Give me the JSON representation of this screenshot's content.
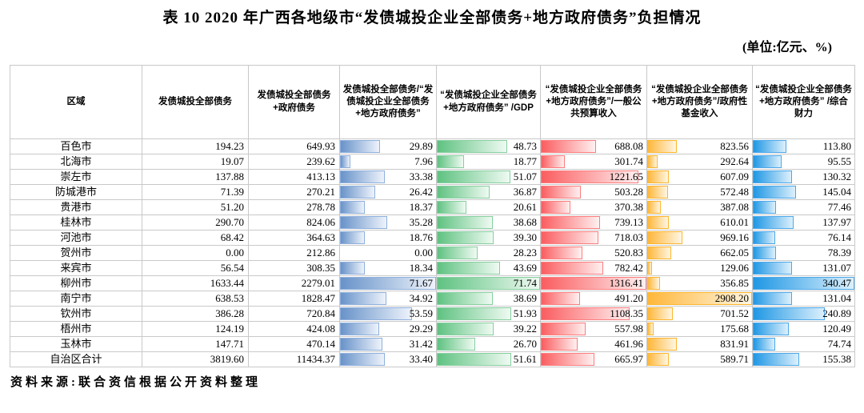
{
  "title": "表 10  2020 年广西各地级市“发债城投企业全部债务+地方政府债务”负担情况",
  "unit_note": "(单位:亿元、%)",
  "source_note": "资料来源:联合资信根据公开资料整理",
  "table": {
    "columns": [
      {
        "key": "region",
        "label": "区域"
      },
      {
        "key": "debt",
        "label": "发债城投全部债务"
      },
      {
        "key": "debt_gov",
        "label": "发债城投全部债务+政府债务"
      },
      {
        "key": "r_share",
        "label": "发债城投全部债务/“发债城投企业全部债务+地方政府债务”",
        "bar_color": "#6893c9",
        "bar_color_light": "#eef3fb",
        "bar_border": "#8fafdc"
      },
      {
        "key": "r_gdp",
        "label": "“发债城投企业全部债务+地方政府债务” /GDP",
        "bar_color": "#5fc281",
        "bar_color_light": "#effaf2",
        "bar_border": "#86cf9f"
      },
      {
        "key": "r_budget",
        "label": "“发债城投企业全部债务+地方政府债务”/一般公共预算收入",
        "bar_color": "#fa5d60",
        "bar_color_light": "#fff0f0",
        "bar_border": "#fb7d7f"
      },
      {
        "key": "r_fund",
        "label": "“发债城投企业全部债务+地方政府债务”/政府性基金收入",
        "bar_color": "#ffb73b",
        "bar_color_light": "#fff6e2",
        "bar_border": "#fcb52e"
      },
      {
        "key": "r_fiscal",
        "label": "“发债城投企业全部债务+地方政府债务” /综合财力",
        "bar_color": "#1f97e4",
        "bar_color_light": "#dcf0fc",
        "bar_border": "#4da7e8"
      }
    ],
    "rows": [
      {
        "region": "百色市",
        "debt": "194.23",
        "debt_gov": "649.93",
        "r_share": "29.89",
        "r_gdp": "48.73",
        "r_budget": "688.08",
        "r_fund": "823.56",
        "r_fiscal": "113.80"
      },
      {
        "region": "北海市",
        "debt": "19.07",
        "debt_gov": "239.62",
        "r_share": "7.96",
        "r_gdp": "18.77",
        "r_budget": "301.74",
        "r_fund": "292.64",
        "r_fiscal": "95.55"
      },
      {
        "region": "崇左市",
        "debt": "137.88",
        "debt_gov": "413.13",
        "r_share": "33.38",
        "r_gdp": "51.07",
        "r_budget": "1221.65",
        "r_fund": "607.09",
        "r_fiscal": "130.32"
      },
      {
        "region": "防城港市",
        "debt": "71.39",
        "debt_gov": "270.21",
        "r_share": "26.42",
        "r_gdp": "36.87",
        "r_budget": "503.28",
        "r_fund": "572.48",
        "r_fiscal": "145.04"
      },
      {
        "region": "贵港市",
        "debt": "51.20",
        "debt_gov": "278.78",
        "r_share": "18.37",
        "r_gdp": "20.61",
        "r_budget": "370.38",
        "r_fund": "387.08",
        "r_fiscal": "77.46"
      },
      {
        "region": "桂林市",
        "debt": "290.70",
        "debt_gov": "824.06",
        "r_share": "35.28",
        "r_gdp": "38.68",
        "r_budget": "739.13",
        "r_fund": "610.01",
        "r_fiscal": "137.97"
      },
      {
        "region": "河池市",
        "debt": "68.42",
        "debt_gov": "364.63",
        "r_share": "18.76",
        "r_gdp": "39.30",
        "r_budget": "718.03",
        "r_fund": "969.16",
        "r_fiscal": "76.14"
      },
      {
        "region": "贺州市",
        "debt": "0.00",
        "debt_gov": "212.86",
        "r_share": "0.00",
        "r_gdp": "28.23",
        "r_budget": "520.83",
        "r_fund": "662.05",
        "r_fiscal": "78.39"
      },
      {
        "region": "来宾市",
        "debt": "56.54",
        "debt_gov": "308.35",
        "r_share": "18.34",
        "r_gdp": "43.69",
        "r_budget": "782.42",
        "r_fund": "129.06",
        "r_fiscal": "131.07"
      },
      {
        "region": "柳州市",
        "debt": "1633.44",
        "debt_gov": "2279.01",
        "r_share": "71.67",
        "r_gdp": "71.74",
        "r_budget": "1316.41",
        "r_fund": "356.85",
        "r_fiscal": "340.47"
      },
      {
        "region": "南宁市",
        "debt": "638.53",
        "debt_gov": "1828.47",
        "r_share": "34.92",
        "r_gdp": "38.69",
        "r_budget": "491.20",
        "r_fund": "2908.20",
        "r_fiscal": "131.04"
      },
      {
        "region": "钦州市",
        "debt": "386.28",
        "debt_gov": "720.84",
        "r_share": "53.59",
        "r_gdp": "51.93",
        "r_budget": "1108.35",
        "r_fund": "701.52",
        "r_fiscal": "240.89"
      },
      {
        "region": "梧州市",
        "debt": "124.19",
        "debt_gov": "424.08",
        "r_share": "29.29",
        "r_gdp": "39.22",
        "r_budget": "557.98",
        "r_fund": "175.68",
        "r_fiscal": "120.49"
      },
      {
        "region": "玉林市",
        "debt": "147.71",
        "debt_gov": "470.14",
        "r_share": "31.42",
        "r_gdp": "26.70",
        "r_budget": "461.96",
        "r_fund": "831.91",
        "r_fiscal": "74.74"
      },
      {
        "region": "自治区合计",
        "debt": "3819.60",
        "debt_gov": "11434.37",
        "r_share": "33.40",
        "r_gdp": "51.61",
        "r_budget": "665.97",
        "r_fund": "589.71",
        "r_fiscal": "155.38"
      }
    ]
  }
}
